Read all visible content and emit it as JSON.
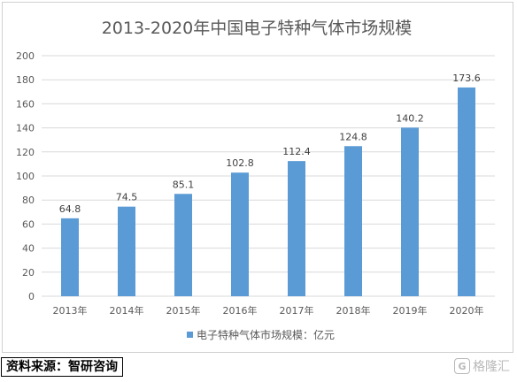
{
  "chart_data": {
    "type": "bar",
    "title": "2013-2020年中国电子特种气体市场规模",
    "categories": [
      "2013年",
      "2014年",
      "2015年",
      "2016年",
      "2017年",
      "2018年",
      "2019年",
      "2020年"
    ],
    "series": [
      {
        "name": "电子特种气体市场规模：亿元",
        "values": [
          64.8,
          74.5,
          85.1,
          102.8,
          112.4,
          124.8,
          140.2,
          173.6
        ]
      }
    ],
    "value_labels": [
      "64.8",
      "74.5",
      "85.1",
      "102.8",
      "112.4",
      "124.8",
      "140.2",
      "173.6"
    ],
    "ylim": [
      0,
      200
    ],
    "yticks": [
      0,
      20,
      40,
      60,
      80,
      100,
      120,
      140,
      160,
      180,
      200
    ],
    "grid": true,
    "legend_position": "bottom-center",
    "bar_color": "#5B9BD5",
    "grid_color": "#d9d9d9",
    "text_color": "#595959"
  },
  "source": {
    "label": "资料来源：智研咨询"
  },
  "watermark": {
    "icon": "gelonghui-logo-icon",
    "text": "格隆汇"
  }
}
